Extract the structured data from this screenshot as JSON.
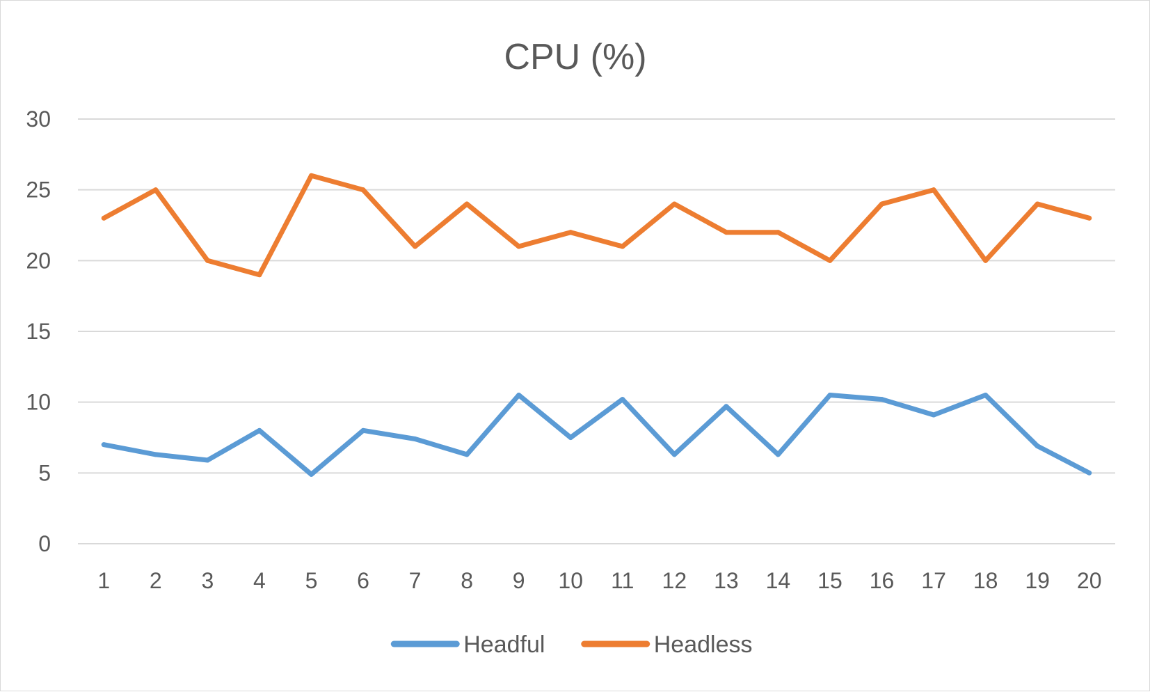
{
  "chart_data": {
    "type": "line",
    "title": "CPU (%)",
    "xlabel": "",
    "ylabel": "",
    "categories": [
      "1",
      "2",
      "3",
      "4",
      "5",
      "6",
      "7",
      "8",
      "9",
      "10",
      "11",
      "12",
      "13",
      "14",
      "15",
      "16",
      "17",
      "18",
      "19",
      "20"
    ],
    "ylim": [
      0,
      30
    ],
    "yticks": [
      0,
      5,
      10,
      15,
      20,
      25,
      30
    ],
    "grid": true,
    "legend": "bottom",
    "series": [
      {
        "name": "Headful",
        "color": "#5b9bd5",
        "values": [
          7,
          6.3,
          5.9,
          8,
          4.9,
          8,
          7.4,
          6.3,
          10.5,
          7.5,
          10.2,
          6.3,
          9.7,
          6.3,
          10.5,
          10.2,
          9.1,
          10.5,
          6.9,
          5
        ]
      },
      {
        "name": "Headless",
        "color": "#ed7d31",
        "values": [
          23,
          25,
          20,
          19,
          26,
          25,
          21,
          24,
          21,
          22,
          21,
          24,
          22,
          22,
          20,
          24,
          25,
          20,
          24,
          23
        ]
      }
    ]
  }
}
